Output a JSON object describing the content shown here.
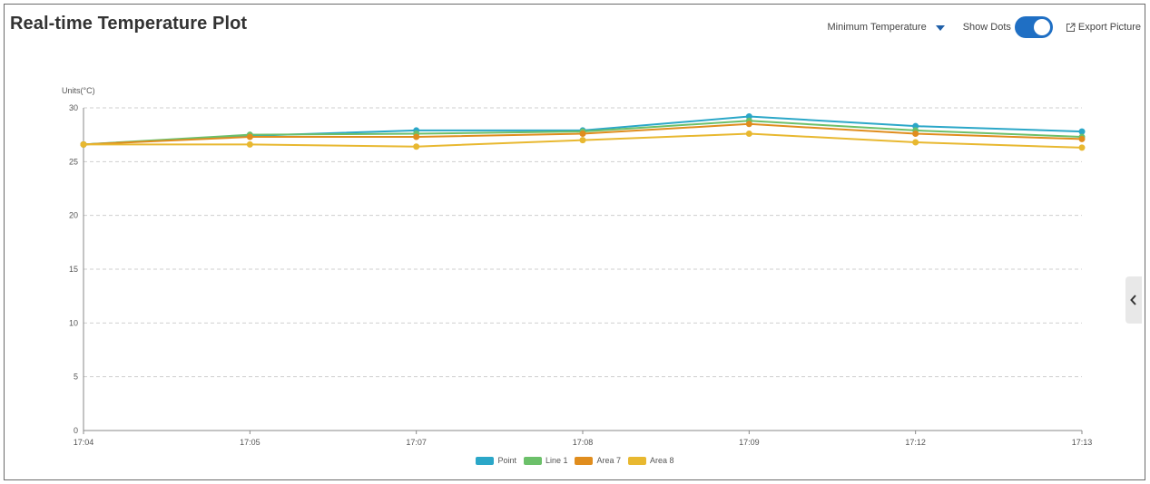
{
  "header": {
    "title": "Real-time Temperature Plot",
    "dropdown_label": "Minimum Temperature",
    "show_dots_label": "Show Dots",
    "show_dots_on": true,
    "export_label": "Export Picture"
  },
  "side_tab": {
    "icon": "chevron-left-icon"
  },
  "chart_data": {
    "type": "line",
    "units_label": "Units(°C)",
    "x": [
      "17:04",
      "17:05",
      "17:07",
      "17:08",
      "17:09",
      "17:12",
      "17:13"
    ],
    "ylim": [
      0,
      30
    ],
    "yticks": [
      0,
      5,
      10,
      15,
      20,
      25,
      30
    ],
    "grid": true,
    "legend_position": "bottom",
    "series": [
      {
        "name": "Point",
        "color": "#2ba7c8",
        "values": [
          26.6,
          27.4,
          27.9,
          27.9,
          29.2,
          28.3,
          27.8
        ]
      },
      {
        "name": "Line 1",
        "color": "#6cc06a",
        "values": [
          26.6,
          27.5,
          27.6,
          27.8,
          28.8,
          27.9,
          27.3
        ]
      },
      {
        "name": "Area 7",
        "color": "#e08d1e",
        "values": [
          26.6,
          27.3,
          27.3,
          27.6,
          28.5,
          27.6,
          27.1
        ]
      },
      {
        "name": "Area 8",
        "color": "#e8b830",
        "values": [
          26.6,
          26.6,
          26.4,
          27.0,
          27.6,
          26.8,
          26.3
        ]
      }
    ]
  }
}
